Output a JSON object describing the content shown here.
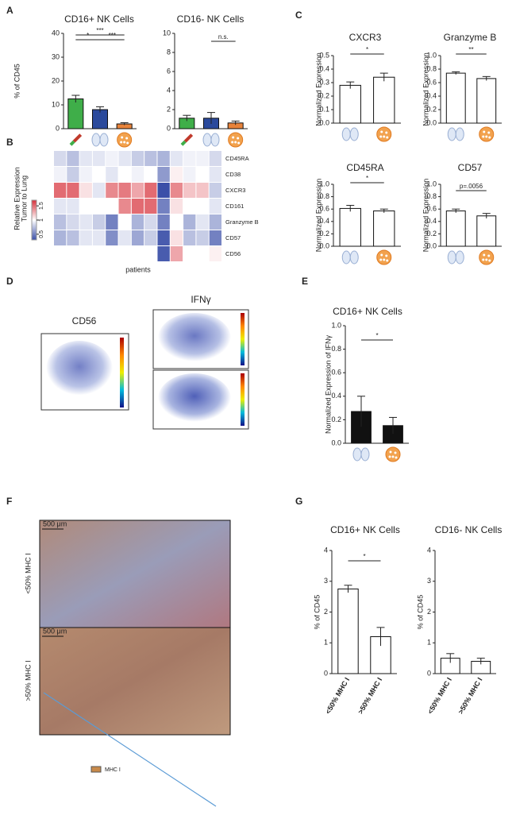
{
  "panels": {
    "a": "A",
    "b": "B",
    "c": "C",
    "d": "D",
    "e": "E",
    "f": "F",
    "g": "G"
  },
  "tsne": {
    "cd56": "CD56",
    "ifng": "IFNγ"
  },
  "histology": {
    "scale_top": "500 μm",
    "scale_bottom": "500 μm",
    "row_top": "<50% MHC I",
    "row_bottom": ">50% MHC I",
    "legend": "MHC I"
  },
  "chart_data": [
    {
      "type": "bar",
      "title": "CD16+ NK Cells",
      "ylabel": "% of CD45",
      "categories": [
        null,
        null,
        null
      ],
      "values": [
        12.5,
        8,
        2
      ],
      "errors": [
        1.5,
        1.2,
        0.5
      ],
      "colors": [
        "#3fae49",
        "#2b4a9c",
        "#e8833a"
      ],
      "ylim": [
        0,
        40
      ],
      "yticks": [
        0,
        10,
        20,
        30,
        40
      ],
      "annotations": [
        "*",
        "***",
        "***"
      ]
    },
    {
      "type": "bar",
      "title": "CD16- NK Cells",
      "categories": [
        null,
        null,
        null
      ],
      "values": [
        1.1,
        1.1,
        0.6
      ],
      "errors": [
        0.3,
        0.6,
        0.2
      ],
      "colors": [
        "#3fae49",
        "#2b4a9c",
        "#e8833a"
      ],
      "ylim": [
        0,
        10
      ],
      "yticks": [
        0,
        2,
        4,
        6,
        8,
        10
      ],
      "annotations": [
        "n.s."
      ]
    },
    {
      "type": "bar",
      "title": "CXCR3",
      "ylabel": "Normalized Expression",
      "categories": [
        null,
        null
      ],
      "values": [
        0.28,
        0.34
      ],
      "errors": [
        0.025,
        0.03
      ],
      "color": "#ffffff",
      "ylim": [
        0,
        0.5
      ],
      "yticks": [
        {
          "value": 0,
          "label": "0.0"
        },
        0.1,
        0.2,
        0.3,
        0.4,
        0.5
      ],
      "annotations": [
        "*"
      ]
    },
    {
      "type": "bar",
      "title": "Granzyme B",
      "ylabel": "Normalized Expression",
      "categories": [
        null,
        null
      ],
      "values": [
        0.74,
        0.66
      ],
      "errors": [
        0.02,
        0.03
      ],
      "color": "#ffffff",
      "ylim": [
        0,
        1
      ],
      "yticks": [
        {
          "value": 0,
          "label": "0.0"
        },
        0.2,
        0.4,
        0.6,
        0.8,
        {
          "value": 1,
          "label": "1.0"
        }
      ],
      "annotations": [
        "**"
      ]
    },
    {
      "type": "bar",
      "title": "CD45RA",
      "ylabel": "Normalized Expression",
      "categories": [
        null,
        null
      ],
      "values": [
        0.61,
        0.57
      ],
      "errors": [
        0.05,
        0.03
      ],
      "color": "#ffffff",
      "ylim": [
        0,
        1
      ],
      "yticks": [
        {
          "value": 0,
          "label": "0.0"
        },
        0.2,
        0.4,
        0.6,
        0.8,
        {
          "value": 1,
          "label": "1.0"
        }
      ],
      "annotations": [
        "*"
      ]
    },
    {
      "type": "bar",
      "title": "CD57",
      "ylabel": "Normalized Expression",
      "categories": [
        null,
        null
      ],
      "values": [
        0.57,
        0.49
      ],
      "errors": [
        0.03,
        0.04
      ],
      "color": "#ffffff",
      "ylim": [
        0,
        1
      ],
      "yticks": [
        {
          "value": 0,
          "label": "0.0"
        },
        0.2,
        0.4,
        0.6,
        0.8,
        {
          "value": 1,
          "label": "1.0"
        }
      ],
      "annotations": [
        "p=.0056"
      ]
    },
    {
      "type": "bar",
      "title": "CD16+ NK Cells",
      "ylabel": "Normalized Expression of IFNγ",
      "categories": [
        null,
        null
      ],
      "values": [
        0.27,
        0.15
      ],
      "errors": [
        0.13,
        0.07
      ],
      "color": "#111111",
      "ylim": [
        0,
        1
      ],
      "yticks": [
        {
          "value": 0,
          "label": "0.0"
        },
        0.2,
        0.4,
        0.6,
        0.8,
        {
          "value": 1,
          "label": "1.0"
        }
      ],
      "annotations": [
        "*"
      ]
    },
    {
      "type": "bar",
      "title": "CD16+ NK Cells",
      "ylabel": "% of CD45",
      "categories": [
        "<50% MHC I",
        ">50% MHC I"
      ],
      "values": [
        2.75,
        1.2
      ],
      "errors": [
        0.12,
        0.3
      ],
      "color": "#ffffff",
      "ylim": [
        0,
        4
      ],
      "yticks": [
        0,
        1,
        2,
        3,
        4
      ],
      "annotations": [
        "*"
      ]
    },
    {
      "type": "bar",
      "title": "CD16- NK Cells",
      "ylabel": "% of CD45",
      "categories": [
        "<50% MHC I",
        ">50% MHC I"
      ],
      "values": [
        0.5,
        0.4
      ],
      "errors": [
        0.15,
        0.1
      ],
      "color": "#ffffff",
      "ylim": [
        0,
        4
      ],
      "yticks": [
        0,
        1,
        2,
        3,
        4
      ],
      "annotations": []
    },
    {
      "type": "heatmap",
      "ylabel": [
        "Relative Expression",
        "Tumor to Lung"
      ],
      "xlabel": "patients",
      "rows": [
        "CD45RA",
        "CD38",
        "CXCR3",
        "CD161",
        "Granzyme B",
        "CD57",
        "CD56"
      ],
      "values": [
        [
          0.85,
          0.75,
          0.9,
          0.9,
          0.95,
          0.9,
          0.8,
          0.75,
          0.7,
          0.9,
          0.95,
          0.95,
          0.85
        ],
        [
          0.95,
          0.8,
          0.95,
          1.0,
          0.9,
          1.0,
          0.95,
          1.0,
          0.6,
          1.05,
          0.95,
          1.0,
          0.9
        ],
        [
          1.5,
          1.5,
          1.1,
          0.9,
          1.4,
          1.45,
          1.3,
          1.5,
          0.3,
          1.4,
          1.2,
          1.2,
          0.8
        ],
        [
          0.9,
          0.9,
          1.0,
          1.0,
          1.0,
          1.4,
          1.5,
          1.5,
          0.5,
          1.1,
          1.0,
          1.0,
          0.9
        ],
        [
          0.75,
          0.85,
          0.9,
          0.8,
          0.5,
          1.0,
          0.7,
          0.85,
          0.5,
          1.0,
          0.7,
          0.9,
          0.7
        ],
        [
          0.7,
          0.75,
          0.9,
          0.9,
          0.55,
          0.9,
          0.65,
          0.8,
          0.35,
          1.1,
          0.75,
          0.8,
          0.5
        ],
        [
          1.0,
          1.0,
          1.0,
          1.0,
          1.0,
          1.0,
          1.0,
          1.0,
          0.35,
          1.3,
          1.0,
          1.0,
          1.05
        ]
      ],
      "clim": [
        0.3,
        1.7
      ],
      "cticks": [
        0.5,
        1,
        1.5
      ]
    }
  ]
}
